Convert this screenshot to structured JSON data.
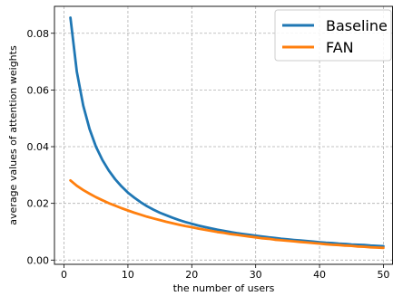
{
  "chart_data": {
    "type": "line",
    "title": "",
    "xlabel": "the number of users",
    "ylabel": "average values of attention weights",
    "xlim": [
      -1.5,
      51.5
    ],
    "ylim": [
      -0.0015,
      0.0895
    ],
    "xticks": [
      0,
      10,
      20,
      30,
      40,
      50
    ],
    "xtick_labels": [
      "0",
      "10",
      "20",
      "30",
      "40",
      "50"
    ],
    "yticks": [
      0.0,
      0.02,
      0.04,
      0.06,
      0.08
    ],
    "ytick_labels": [
      "0.00",
      "0.02",
      "0.04",
      "0.06",
      "0.08"
    ],
    "grid": true,
    "legend_position": "top-right",
    "x": [
      1,
      2,
      3,
      4,
      5,
      6,
      7,
      8,
      9,
      10,
      11,
      12,
      13,
      14,
      15,
      16,
      17,
      18,
      19,
      20,
      21,
      22,
      23,
      24,
      25,
      26,
      27,
      28,
      29,
      30,
      31,
      32,
      33,
      34,
      35,
      36,
      37,
      38,
      39,
      40,
      41,
      42,
      43,
      44,
      45,
      46,
      47,
      48,
      49,
      50
    ],
    "series": [
      {
        "name": "Baseline",
        "color": "#1f77b4",
        "values": [
          0.0855,
          0.0665,
          0.0545,
          0.0462,
          0.04,
          0.0353,
          0.0316,
          0.0285,
          0.026,
          0.0238,
          0.022,
          0.0204,
          0.019,
          0.0178,
          0.0167,
          0.0158,
          0.0149,
          0.0141,
          0.0134,
          0.0128,
          0.0122,
          0.0117,
          0.0112,
          0.0107,
          0.0103,
          0.0099,
          0.0095,
          0.0092,
          0.0089,
          0.0086,
          0.0083,
          0.008,
          0.0078,
          0.0075,
          0.0073,
          0.0071,
          0.0069,
          0.0067,
          0.0065,
          0.0063,
          0.0061,
          0.006,
          0.0058,
          0.0057,
          0.0055,
          0.0054,
          0.0053,
          0.0051,
          0.005,
          0.0049
        ]
      },
      {
        "name": "FAN",
        "color": "#ff7f0e",
        "values": [
          0.0281,
          0.0262,
          0.0247,
          0.0234,
          0.0222,
          0.0211,
          0.0201,
          0.0192,
          0.0183,
          0.0175,
          0.0167,
          0.016,
          0.0153,
          0.0147,
          0.0141,
          0.0135,
          0.013,
          0.0125,
          0.012,
          0.0116,
          0.0111,
          0.0107,
          0.0103,
          0.0099,
          0.0096,
          0.0092,
          0.0089,
          0.0086,
          0.0083,
          0.008,
          0.0077,
          0.0075,
          0.0072,
          0.007,
          0.0068,
          0.0066,
          0.0064,
          0.0062,
          0.006,
          0.0058,
          0.0056,
          0.0054,
          0.0053,
          0.0051,
          0.005,
          0.0048,
          0.0047,
          0.0045,
          0.0044,
          0.0043
        ]
      }
    ]
  }
}
